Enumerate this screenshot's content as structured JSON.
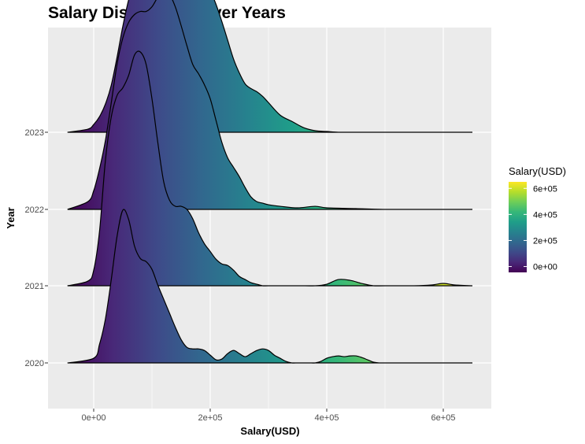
{
  "chart_data": {
    "type": "ridgeline",
    "title": "Salary Distribution Over Years",
    "xlabel": "Salary(USD)",
    "ylabel": "Year",
    "xlim": [
      -80000,
      680000
    ],
    "x_ticks": [
      0,
      200000,
      400000,
      600000
    ],
    "x_tick_labels": [
      "0e+00",
      "2e+05",
      "4e+05",
      "6e+05"
    ],
    "categories": [
      "2020",
      "2021",
      "2022",
      "2023"
    ],
    "fill_scale": "viridis",
    "fill_range": [
      -45000,
      650000
    ],
    "legend": {
      "title": "Salary(USD)",
      "position": "right",
      "ticks": [
        0,
        200000,
        400000,
        600000
      ],
      "tick_labels": [
        "0e+00",
        "2e+05",
        "4e+05",
        "6e+05"
      ],
      "range": [
        -45000,
        650000
      ]
    },
    "series": [
      {
        "name": "2020",
        "x": [
          -45000,
          0,
          10000,
          20000,
          30000,
          40000,
          50000,
          60000,
          70000,
          80000,
          90000,
          100000,
          110000,
          120000,
          130000,
          140000,
          150000,
          160000,
          170000,
          180000,
          190000,
          200000,
          210000,
          220000,
          230000,
          240000,
          250000,
          260000,
          270000,
          280000,
          290000,
          300000,
          310000,
          320000,
          330000,
          340000,
          350000,
          360000,
          370000,
          380000,
          390000,
          400000,
          410000,
          420000,
          430000,
          440000,
          450000,
          460000,
          470000,
          480000,
          490000,
          500000,
          550000,
          600000,
          650000
        ],
        "density": [
          0.0,
          0.03,
          0.12,
          0.28,
          0.53,
          0.81,
          0.98,
          0.92,
          0.75,
          0.67,
          0.65,
          0.6,
          0.5,
          0.41,
          0.32,
          0.23,
          0.15,
          0.1,
          0.09,
          0.09,
          0.08,
          0.05,
          0.02,
          0.025,
          0.06,
          0.08,
          0.06,
          0.04,
          0.06,
          0.08,
          0.09,
          0.08,
          0.05,
          0.03,
          0.01,
          0.0,
          0.0,
          0.0,
          0.0,
          0.0,
          0.01,
          0.03,
          0.04,
          0.045,
          0.04,
          0.045,
          0.045,
          0.035,
          0.02,
          0.005,
          0.0,
          0.0,
          0.0,
          0.0,
          0.0
        ]
      },
      {
        "name": "2021",
        "x": [
          -45000,
          -10000,
          0,
          10000,
          20000,
          30000,
          40000,
          50000,
          60000,
          70000,
          80000,
          90000,
          100000,
          110000,
          120000,
          130000,
          140000,
          150000,
          160000,
          170000,
          180000,
          190000,
          200000,
          210000,
          220000,
          230000,
          240000,
          250000,
          260000,
          270000,
          280000,
          290000,
          300000,
          350000,
          380000,
          400000,
          420000,
          440000,
          460000,
          480000,
          500000,
          550000,
          580000,
          600000,
          620000,
          650000
        ],
        "density": [
          0.0,
          0.03,
          0.1,
          0.35,
          0.8,
          1.08,
          1.22,
          1.27,
          1.35,
          1.48,
          1.5,
          1.42,
          1.2,
          0.92,
          0.67,
          0.55,
          0.51,
          0.51,
          0.49,
          0.43,
          0.34,
          0.27,
          0.22,
          0.17,
          0.14,
          0.13,
          0.1,
          0.06,
          0.04,
          0.02,
          0.01,
          0.0,
          0.0,
          0.0,
          0.0,
          0.01,
          0.04,
          0.035,
          0.015,
          0.0,
          0.0,
          0.0,
          0.005,
          0.015,
          0.005,
          0.0
        ]
      },
      {
        "name": "2022",
        "x": [
          -45000,
          -10000,
          0,
          10000,
          20000,
          30000,
          40000,
          50000,
          60000,
          70000,
          80000,
          90000,
          100000,
          110000,
          120000,
          130000,
          140000,
          150000,
          160000,
          170000,
          180000,
          190000,
          200000,
          210000,
          220000,
          230000,
          240000,
          250000,
          260000,
          270000,
          280000,
          290000,
          300000,
          320000,
          350000,
          380000,
          400000,
          450000,
          500000,
          550000,
          600000,
          650000
        ],
        "density": [
          0.0,
          0.05,
          0.12,
          0.26,
          0.44,
          0.68,
          0.93,
          1.1,
          1.2,
          1.25,
          1.27,
          1.27,
          1.3,
          1.36,
          1.39,
          1.38,
          1.3,
          1.18,
          1.05,
          0.93,
          0.87,
          0.8,
          0.71,
          0.57,
          0.43,
          0.33,
          0.27,
          0.21,
          0.14,
          0.08,
          0.05,
          0.04,
          0.03,
          0.02,
          0.01,
          0.02,
          0.01,
          0.005,
          0.0,
          0.0,
          0.0,
          0.0
        ]
      },
      {
        "name": "2023",
        "x": [
          -45000,
          -10000,
          0,
          10000,
          20000,
          30000,
          40000,
          50000,
          60000,
          70000,
          80000,
          90000,
          100000,
          110000,
          120000,
          130000,
          140000,
          150000,
          160000,
          170000,
          180000,
          190000,
          200000,
          210000,
          220000,
          230000,
          240000,
          250000,
          260000,
          270000,
          280000,
          290000,
          300000,
          320000,
          340000,
          360000,
          380000,
          400000,
          420000,
          450000,
          500000,
          550000,
          600000,
          650000
        ],
        "density": [
          0.0,
          0.02,
          0.05,
          0.1,
          0.18,
          0.3,
          0.48,
          0.68,
          0.85,
          0.97,
          1.07,
          1.15,
          1.26,
          1.34,
          1.4,
          1.42,
          1.39,
          1.32,
          1.22,
          1.13,
          1.05,
          0.98,
          0.91,
          0.82,
          0.71,
          0.59,
          0.47,
          0.38,
          0.31,
          0.28,
          0.26,
          0.23,
          0.19,
          0.11,
          0.07,
          0.03,
          0.01,
          0.005,
          0.0,
          0.0,
          0.0,
          0.0,
          0.0,
          0.0
        ]
      }
    ]
  }
}
